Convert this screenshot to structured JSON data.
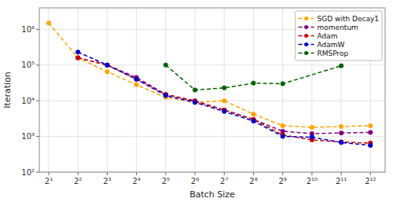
{
  "chart_data": {
    "type": "line",
    "x_label": "Batch Size",
    "y_label": "Iteration",
    "log": true,
    "grid": true,
    "legend": "upper right",
    "marker": "circle",
    "line_style": "dashed",
    "xlim": [
      1.6,
      5800
    ],
    "ylim": [
      100,
      4000000
    ],
    "xticks": [
      {
        "value": 2,
        "label": "2¹"
      },
      {
        "value": 4,
        "label": "2²"
      },
      {
        "value": 8,
        "label": "2³"
      },
      {
        "value": 16,
        "label": "2⁴"
      },
      {
        "value": 32,
        "label": "2⁵"
      },
      {
        "value": 64,
        "label": "2⁶"
      },
      {
        "value": 128,
        "label": "2⁷"
      },
      {
        "value": 256,
        "label": "2⁸"
      },
      {
        "value": 512,
        "label": "2⁹"
      },
      {
        "value": 1024,
        "label": "2¹⁰"
      },
      {
        "value": 2048,
        "label": "2¹¹"
      },
      {
        "value": 4096,
        "label": "2¹²"
      }
    ],
    "yticks": [
      {
        "value": 100,
        "label": "10²"
      },
      {
        "value": 1000,
        "label": "10³"
      },
      {
        "value": 10000,
        "label": "10⁴"
      },
      {
        "value": 100000,
        "label": "10⁵"
      },
      {
        "value": 1000000,
        "label": "10⁶"
      }
    ],
    "series": [
      {
        "name": "SGD with Decay1",
        "color": "#FFA500",
        "x": [
          2,
          4,
          8,
          16,
          32,
          64,
          128,
          256,
          512,
          1024,
          2048,
          4096
        ],
        "values": [
          1500000,
          160000,
          65000,
          28000,
          12500,
          9000,
          10000,
          4200,
          2000,
          1800,
          1900,
          2000
        ]
      },
      {
        "name": "momentum",
        "color": "#800080",
        "x": [
          4,
          8,
          16,
          32,
          64,
          128,
          256,
          512,
          1024,
          2048,
          4096
        ],
        "values": [
          160000,
          100000,
          45000,
          15000,
          10000,
          5500,
          3000,
          1400,
          1200,
          1250,
          1300
        ]
      },
      {
        "name": "Adam",
        "color": "#CC0000",
        "x": [
          4,
          8,
          16,
          32,
          64,
          128,
          256,
          512,
          1024,
          2048,
          4096
        ],
        "values": [
          160000,
          100000,
          40000,
          15000,
          9500,
          5500,
          3000,
          1100,
          800,
          700,
          650
        ]
      },
      {
        "name": "AdamW",
        "color": "#0000CC",
        "x": [
          4,
          8,
          16,
          32,
          64,
          128,
          256,
          512,
          1024,
          2048,
          4096
        ],
        "values": [
          230000,
          100000,
          40000,
          14000,
          9000,
          5000,
          2700,
          1000,
          950,
          680,
          560
        ]
      },
      {
        "name": "RMSProp",
        "color": "#006400",
        "x": [
          32,
          64,
          128,
          256,
          512,
          2048
        ],
        "values": [
          100000,
          20000,
          23000,
          31000,
          30000,
          95000
        ]
      }
    ]
  }
}
